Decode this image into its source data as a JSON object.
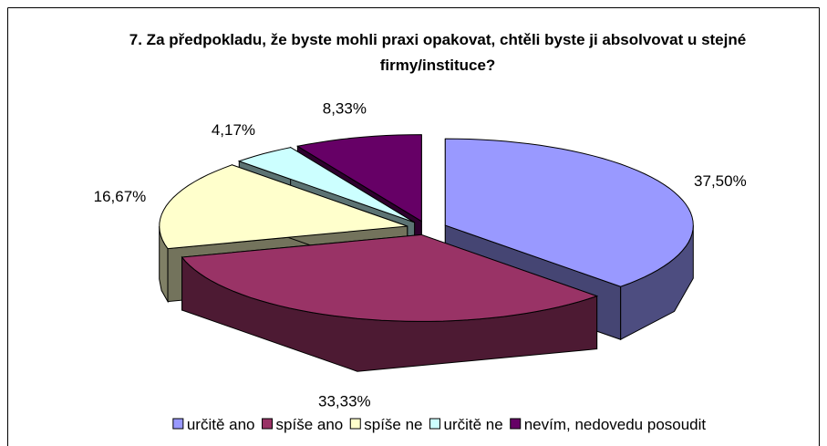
{
  "chart_data": {
    "type": "pie3d",
    "title": "7. Za předpokladu, že byste mohli praxi opakovat, chtěli byste ji absolvovat u stejné firmy/instituce?",
    "categories": [
      "určitě ano",
      "spíše ano",
      "spíše ne",
      "určitě ne",
      "nevím, nedovedu posoudit"
    ],
    "values": [
      37.5,
      33.33,
      16.67,
      4.17,
      8.33
    ],
    "value_labels": [
      "37,50%",
      "33,33%",
      "16,67%",
      "4,17%",
      "8,33%"
    ],
    "colors": [
      "#9999FF",
      "#993366",
      "#FFFFCC",
      "#CCFFFF",
      "#660066"
    ],
    "legend": "bottom"
  }
}
